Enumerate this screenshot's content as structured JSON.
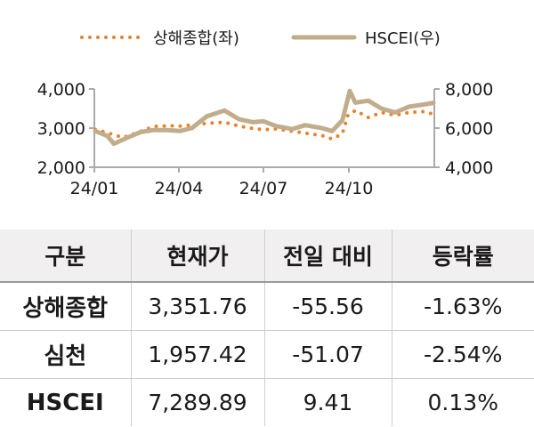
{
  "chart_data": {
    "type": "line",
    "legend": {
      "placement": "top-center"
    },
    "x_ticks": [
      "24/01",
      "24/04",
      "24/07",
      "24/10"
    ],
    "y_left": {
      "ticks": [
        "4,000",
        "3,000",
        "2,000"
      ],
      "range": [
        2000,
        4000
      ]
    },
    "y_right": {
      "ticks": [
        "8,000",
        "6,000",
        "4,000"
      ],
      "range": [
        4000,
        8000
      ]
    },
    "grid": false,
    "series": [
      {
        "name": "상해종합(좌)",
        "axis": "left",
        "style": "dotted",
        "color": "#e8822e",
        "x": [
          "24/01/02",
          "24/01/15",
          "24/02/01",
          "24/02/20",
          "24/03/05",
          "24/03/20",
          "24/04/02",
          "24/04/15",
          "24/05/01",
          "24/05/20",
          "24/06/05",
          "24/06/20",
          "24/07/01",
          "24/07/15",
          "24/08/01",
          "24/08/15",
          "24/09/02",
          "24/09/13",
          "24/09/24",
          "24/09/30",
          "24/10/08",
          "24/10/22",
          "24/11/05",
          "24/11/20",
          "24/12/05",
          "24/12/20",
          "24/12/31"
        ],
        "values": [
          2965,
          2880,
          2760,
          2920,
          3040,
          3060,
          3050,
          3080,
          3120,
          3150,
          3050,
          2990,
          2960,
          2980,
          2920,
          2870,
          2810,
          2720,
          2860,
          3330,
          3450,
          3270,
          3400,
          3330,
          3400,
          3420,
          3360
        ]
      },
      {
        "name": "HSCEI(우)",
        "axis": "right",
        "style": "solid",
        "color": "#c1ad8c",
        "x": [
          "24/01/02",
          "24/01/15",
          "24/01/22",
          "24/02/05",
          "24/02/20",
          "24/03/05",
          "24/03/20",
          "24/04/02",
          "24/04/15",
          "24/05/01",
          "24/05/20",
          "24/06/05",
          "24/06/20",
          "24/07/01",
          "24/07/15",
          "24/08/01",
          "24/08/15",
          "24/09/02",
          "24/09/13",
          "24/09/24",
          "24/10/02",
          "24/10/08",
          "24/10/22",
          "24/11/05",
          "24/11/20",
          "24/12/05",
          "24/12/20",
          "24/12/31"
        ],
        "values": [
          5850,
          5600,
          5200,
          5500,
          5800,
          5900,
          5900,
          5850,
          6000,
          6600,
          6900,
          6450,
          6300,
          6350,
          6100,
          5950,
          6150,
          6000,
          5850,
          6400,
          7900,
          7300,
          7400,
          7000,
          6800,
          7100,
          7200,
          7290
        ]
      }
    ]
  },
  "table": {
    "headers": [
      "구분",
      "현재가",
      "전일 대비",
      "등락률"
    ],
    "rows": [
      {
        "name": "상해종합",
        "price": "3,351.76",
        "change": "-55.56",
        "rate": "-1.63%"
      },
      {
        "name": "심천",
        "price": "1,957.42",
        "change": "-51.07",
        "rate": "-2.54%"
      },
      {
        "name": "HSCEI",
        "price": "7,289.89",
        "change": "9.41",
        "rate": "0.13%"
      }
    ]
  }
}
